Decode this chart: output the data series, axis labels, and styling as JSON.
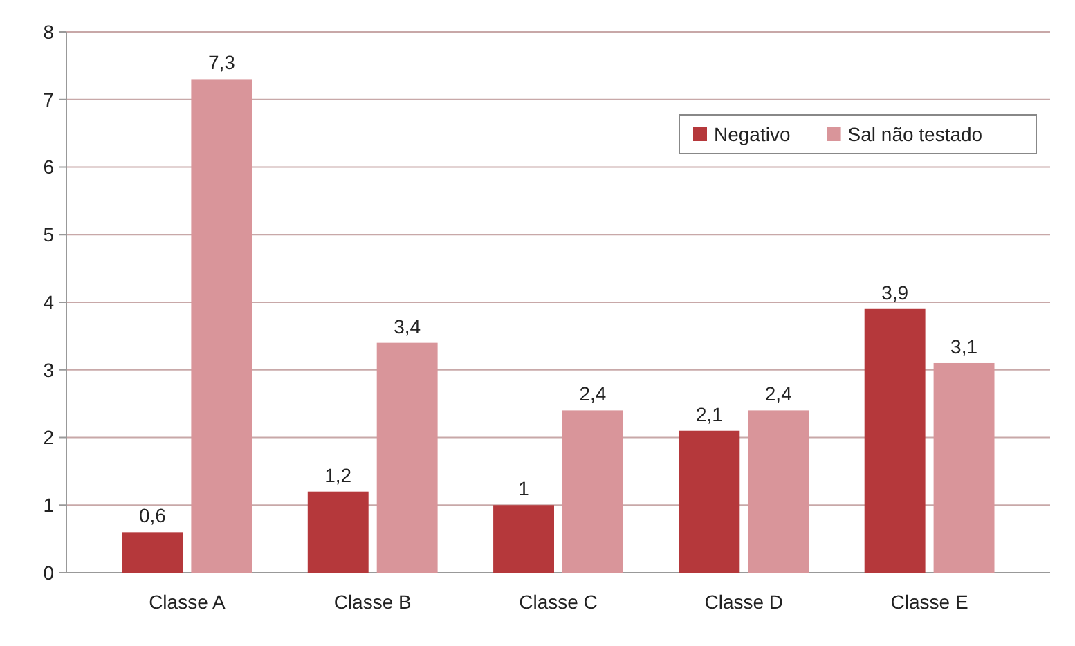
{
  "chart_data": {
    "type": "bar",
    "categories": [
      "Classe A",
      "Classe B",
      "Classe C",
      "Classe D",
      "Classe E"
    ],
    "series": [
      {
        "name": "Negativo",
        "color": "#b5383b",
        "values": [
          0.6,
          1.2,
          1,
          2.1,
          3.9
        ],
        "value_labels": [
          "0,6",
          "1,2",
          "1",
          "2,1",
          "3,9"
        ]
      },
      {
        "name": "Sal não testado",
        "color": "#d9959a",
        "values": [
          7.3,
          3.4,
          2.4,
          2.4,
          3.1
        ],
        "value_labels": [
          "7,3",
          "3,4",
          "2,4",
          "2,4",
          "3,1"
        ]
      }
    ],
    "ylim": [
      0,
      8
    ],
    "yticks": [
      0,
      1,
      2,
      3,
      4,
      5,
      6,
      7,
      8
    ],
    "grid": "y",
    "legend": "top right"
  }
}
